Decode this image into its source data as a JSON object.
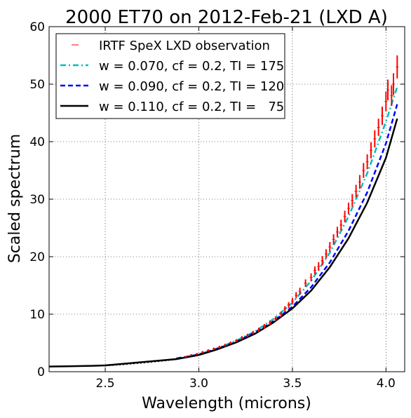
{
  "chart_data": {
    "type": "line",
    "title": "2000 ET70 on 2012-Feb-21 (LXD A)",
    "xlabel": "Wavelength (microns)",
    "ylabel": "Scaled spectrum",
    "xlim": [
      2.2,
      4.1
    ],
    "ylim": [
      0,
      60
    ],
    "xticks": [
      2.5,
      3.0,
      3.5,
      4.0
    ],
    "xtick_labels": [
      "2.5",
      "3.0",
      "3.5",
      "4.0"
    ],
    "yticks": [
      0,
      10,
      20,
      30,
      40,
      50,
      60
    ],
    "ytick_labels": [
      "0",
      "10",
      "20",
      "30",
      "40",
      "50",
      "60"
    ],
    "grid": true,
    "legend_position": "top-left",
    "observation": {
      "name": "IRTF SpeX LXD observation",
      "color": "#ff0000",
      "points": [
        [
          2.93,
          2.6,
          0.15
        ],
        [
          2.96,
          2.9,
          0.15
        ],
        [
          2.99,
          3.1,
          0.15
        ],
        [
          3.02,
          3.4,
          0.2
        ],
        [
          3.05,
          3.7,
          0.2
        ],
        [
          3.08,
          4.0,
          0.2
        ],
        [
          3.11,
          4.3,
          0.2
        ],
        [
          3.14,
          4.6,
          0.25
        ],
        [
          3.17,
          5.0,
          0.25
        ],
        [
          3.2,
          5.4,
          0.25
        ],
        [
          3.23,
          5.9,
          0.3
        ],
        [
          3.26,
          6.3,
          0.3
        ],
        [
          3.29,
          6.8,
          0.3
        ],
        [
          3.32,
          7.3,
          0.35
        ],
        [
          3.35,
          7.9,
          0.4
        ],
        [
          3.38,
          8.5,
          0.4
        ],
        [
          3.41,
          9.2,
          0.4
        ],
        [
          3.44,
          10.0,
          0.45
        ],
        [
          3.46,
          10.9,
          0.5
        ],
        [
          3.48,
          11.6,
          0.5
        ],
        [
          3.5,
          12.3,
          0.55
        ],
        [
          3.52,
          13.3,
          0.55
        ],
        [
          3.54,
          14.0,
          0.6
        ],
        [
          3.57,
          15.4,
          0.65
        ],
        [
          3.6,
          16.4,
          0.7
        ],
        [
          3.62,
          17.6,
          0.7
        ],
        [
          3.64,
          18.3,
          0.75
        ],
        [
          3.66,
          19.3,
          0.8
        ],
        [
          3.68,
          20.5,
          0.8
        ],
        [
          3.7,
          21.7,
          0.85
        ],
        [
          3.72,
          23.0,
          0.9
        ],
        [
          3.74,
          24.3,
          0.9
        ],
        [
          3.76,
          25.5,
          0.95
        ],
        [
          3.78,
          27.0,
          1.0
        ],
        [
          3.8,
          28.4,
          1.0
        ],
        [
          3.82,
          29.8,
          1.1
        ],
        [
          3.84,
          31.4,
          1.1
        ],
        [
          3.86,
          33.0,
          1.2
        ],
        [
          3.88,
          35.0,
          1.3
        ],
        [
          3.9,
          36.5,
          1.3
        ],
        [
          3.92,
          38.5,
          1.4
        ],
        [
          3.94,
          40.5,
          1.5
        ],
        [
          3.96,
          42.5,
          1.5
        ],
        [
          3.98,
          44.5,
          1.6
        ],
        [
          4.0,
          47.0,
          1.7
        ],
        [
          4.01,
          49.0,
          1.8
        ],
        [
          4.03,
          48.0,
          1.8
        ],
        [
          4.04,
          50.0,
          1.9
        ],
        [
          4.06,
          53.0,
          2.0
        ]
      ]
    },
    "series": [
      {
        "name": "w = 0.070, cf = 0.2, TI = 175",
        "color": "#00bfbf",
        "style": "dashdot",
        "x": [
          2.88,
          2.95,
          3.0,
          3.1,
          3.2,
          3.3,
          3.4,
          3.5,
          3.6,
          3.7,
          3.8,
          3.9,
          4.0,
          4.06
        ],
        "y": [
          2.3,
          2.7,
          3.0,
          4.1,
          5.4,
          7.0,
          9.2,
          12.0,
          15.8,
          20.7,
          27.0,
          34.5,
          43.5,
          49.5
        ]
      },
      {
        "name": "w = 0.090, cf = 0.2, TI = 120",
        "color": "#0000ff",
        "style": "dashed",
        "x": [
          2.88,
          2.95,
          3.0,
          3.1,
          3.2,
          3.3,
          3.4,
          3.5,
          3.6,
          3.7,
          3.8,
          3.9,
          4.0,
          4.06
        ],
        "y": [
          2.3,
          2.7,
          3.0,
          4.0,
          5.2,
          6.8,
          8.8,
          11.3,
          14.7,
          19.0,
          24.5,
          31.2,
          39.7,
          46.5
        ]
      },
      {
        "name": "w = 0.110, cf = 0.2, TI =   75",
        "color": "#000000",
        "style": "solid",
        "x": [
          2.2,
          2.3,
          2.4,
          2.5,
          2.88,
          2.95,
          3.0,
          3.1,
          3.2,
          3.3,
          3.4,
          3.5,
          3.6,
          3.7,
          3.8,
          3.9,
          4.0,
          4.06
        ],
        "y": [
          0.9,
          0.95,
          1.0,
          1.1,
          2.2,
          2.6,
          2.9,
          3.9,
          5.1,
          6.6,
          8.6,
          11.0,
          14.1,
          18.2,
          23.2,
          29.4,
          37.2,
          44.0
        ],
        "gap": {
          "name": "",
          "style": "dotted",
          "x": [
            2.5,
            2.6,
            2.7,
            2.8,
            2.88
          ],
          "y": [
            1.1,
            1.3,
            1.6,
            1.9,
            2.2
          ]
        }
      }
    ]
  }
}
